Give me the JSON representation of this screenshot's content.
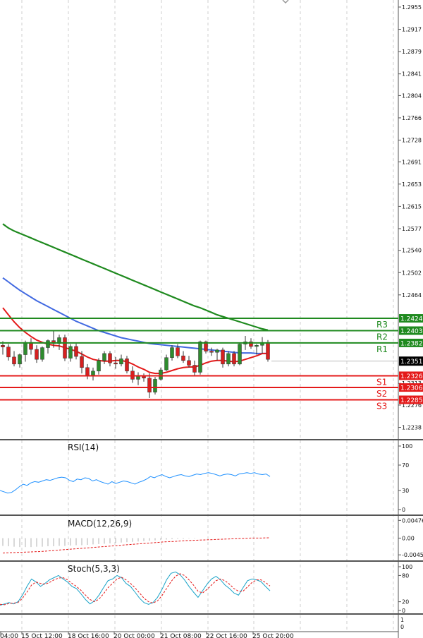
{
  "chart_data": {
    "type": "candlestick",
    "colors": {
      "bull": "#2e8b2e",
      "bear": "#d62020",
      "ma_fast": "#e41a1a",
      "ma_mid": "#4169e1",
      "ma_slow": "#1f8a1f",
      "resistance": "#1f8a1f",
      "support": "#e41a1a",
      "rsi_line": "#1e90ff",
      "macd_hist": "#b0b0b0",
      "macd_signal": "#e41a1a",
      "stoch_k": "#1aa3c8",
      "stoch_d": "#e41a1a",
      "label_bg_green": "#1f8a1f",
      "label_bg_red": "#e41a1a",
      "label_bg_current": "#000000"
    },
    "price_axis": {
      "ticks": [
        "1.2955",
        "1.2917",
        "1.2879",
        "1.2841",
        "1.2804",
        "1.2766",
        "1.2728",
        "1.2691",
        "1.2653",
        "1.2615",
        "1.2577",
        "1.2540",
        "1.2502",
        "1.2464",
        "1.2313",
        "1.2276",
        "1.2238"
      ],
      "tick_values": [
        1.2955,
        1.2917,
        1.2879,
        1.2841,
        1.2804,
        1.2766,
        1.2728,
        1.2691,
        1.2653,
        1.2615,
        1.2577,
        1.254,
        1.2502,
        1.2464,
        1.2313,
        1.2276,
        1.2238
      ],
      "range": [
        1.2223,
        1.2961
      ]
    },
    "levels": [
      {
        "name": "R3",
        "value": 1.2424,
        "label": "1.2424",
        "kind": "resistance"
      },
      {
        "name": "R2",
        "value": 1.2403,
        "label": "1.2403",
        "kind": "resistance"
      },
      {
        "name": "R1",
        "value": 1.2382,
        "label": "1.2382",
        "kind": "resistance"
      },
      {
        "name": "S1",
        "value": 1.2326,
        "label": "1.2326",
        "kind": "support"
      },
      {
        "name": "S2",
        "value": 1.2306,
        "label": "1.2306",
        "kind": "support"
      },
      {
        "name": "S3",
        "value": 1.2285,
        "label": "1.2285",
        "kind": "support"
      }
    ],
    "current_price": {
      "value": 1.2351,
      "label": "1.2351"
    },
    "time_axis": [
      "04:00",
      "15 Oct 12:00",
      "18 Oct 16:00",
      "20 Oct 00:00",
      "21 Oct 08:00",
      "22 Oct 16:00",
      "25 Oct 20:00"
    ],
    "candles": [
      [
        1.2378,
        1.2385,
        1.2362,
        1.2375
      ],
      [
        1.2375,
        1.238,
        1.2352,
        1.2358
      ],
      [
        1.2358,
        1.2368,
        1.2342,
        1.2346
      ],
      [
        1.2346,
        1.2364,
        1.234,
        1.2362
      ],
      [
        1.2362,
        1.2386,
        1.235,
        1.2383
      ],
      [
        1.2383,
        1.239,
        1.2362,
        1.2371
      ],
      [
        1.2371,
        1.2378,
        1.2348,
        1.2354
      ],
      [
        1.2354,
        1.2376,
        1.235,
        1.2374
      ],
      [
        1.2374,
        1.2388,
        1.2364,
        1.2386
      ],
      [
        1.2386,
        1.2402,
        1.2374,
        1.2381
      ],
      [
        1.2381,
        1.2396,
        1.237,
        1.2391
      ],
      [
        1.2391,
        1.2396,
        1.2351,
        1.2356
      ],
      [
        1.2356,
        1.238,
        1.235,
        1.2376
      ],
      [
        1.2376,
        1.2381,
        1.2354,
        1.2359
      ],
      [
        1.2359,
        1.2368,
        1.233,
        1.234
      ],
      [
        1.234,
        1.2346,
        1.232,
        1.2327
      ],
      [
        1.2327,
        1.234,
        1.2318,
        1.2334
      ],
      [
        1.2334,
        1.2356,
        1.2328,
        1.2352
      ],
      [
        1.2352,
        1.2368,
        1.2346,
        1.2364
      ],
      [
        1.2364,
        1.2368,
        1.2342,
        1.2348
      ],
      [
        1.2348,
        1.2358,
        1.2338,
        1.2346
      ],
      [
        1.2346,
        1.2362,
        1.2342,
        1.2355
      ],
      [
        1.2355,
        1.236,
        1.233,
        1.2334
      ],
      [
        1.2334,
        1.2342,
        1.2314,
        1.232
      ],
      [
        1.232,
        1.2332,
        1.231,
        1.2326
      ],
      [
        1.2326,
        1.233,
        1.2316,
        1.2322
      ],
      [
        1.2322,
        1.233,
        1.2288,
        1.2298
      ],
      [
        1.2298,
        1.2324,
        1.2294,
        1.232
      ],
      [
        1.232,
        1.234,
        1.2318,
        1.2336
      ],
      [
        1.2336,
        1.2362,
        1.2334,
        1.2357
      ],
      [
        1.2357,
        1.2378,
        1.2352,
        1.2374
      ],
      [
        1.2374,
        1.238,
        1.2356,
        1.236
      ],
      [
        1.236,
        1.2368,
        1.2348,
        1.2352
      ],
      [
        1.2352,
        1.236,
        1.234,
        1.2344
      ],
      [
        1.2344,
        1.2352,
        1.2326,
        1.2332
      ],
      [
        1.2332,
        1.2386,
        1.2328,
        1.2384
      ],
      [
        1.2384,
        1.2386,
        1.2364,
        1.2368
      ],
      [
        1.2368,
        1.2374,
        1.236,
        1.2366
      ],
      [
        1.2366,
        1.2372,
        1.2352,
        1.237
      ],
      [
        1.237,
        1.2374,
        1.234,
        1.2346
      ],
      [
        1.2346,
        1.2368,
        1.2342,
        1.2364
      ],
      [
        1.2364,
        1.2368,
        1.2342,
        1.2346
      ],
      [
        1.2346,
        1.2382,
        1.2344,
        1.238
      ],
      [
        1.238,
        1.2394,
        1.237,
        1.2384
      ],
      [
        1.2384,
        1.239,
        1.2372,
        1.2376
      ],
      [
        1.2376,
        1.238,
        1.2362,
        1.2378
      ],
      [
        1.2378,
        1.2392,
        1.2364,
        1.2383
      ],
      [
        1.2383,
        1.2387,
        1.235,
        1.2354
      ]
    ],
    "ma_fast": [
      1.2442,
      1.243,
      1.2418,
      1.2408,
      1.24,
      1.2393,
      1.2387,
      1.2383,
      1.238,
      1.2378,
      1.2377,
      1.2374,
      1.2371,
      1.2368,
      1.2363,
      1.2358,
      1.2354,
      1.2352,
      1.2351,
      1.2351,
      1.2352,
      1.2352,
      1.235,
      1.2346,
      1.2341,
      1.2337,
      1.2332,
      1.233,
      1.233,
      1.2332,
      1.2335,
      1.2338,
      1.234,
      1.2341,
      1.2341,
      1.2344,
      1.2348,
      1.2351,
      1.2352,
      1.2352,
      1.2351,
      1.235,
      1.2351,
      1.2354,
      1.2357,
      1.236,
      1.2364,
      1.2364
    ],
    "ma_mid": [
      1.2493,
      1.2486,
      1.2479,
      1.2472,
      1.2466,
      1.246,
      1.2454,
      1.2449,
      1.2444,
      1.2439,
      1.2434,
      1.2429,
      1.2424,
      1.2419,
      1.2415,
      1.2411,
      1.2407,
      1.2403,
      1.24,
      1.2397,
      1.2394,
      1.2391,
      1.2389,
      1.2387,
      1.2385,
      1.2383,
      1.2381,
      1.238,
      1.2379,
      1.2378,
      1.2377,
      1.2376,
      1.2375,
      1.2374,
      1.2373,
      1.2372,
      1.2371,
      1.237,
      1.2369,
      1.2368,
      1.2367,
      1.2366,
      1.2365,
      1.2365,
      1.2365,
      1.2364,
      1.2364,
      1.2364
    ],
    "ma_slow": [
      1.2585,
      1.2578,
      1.2573,
      1.2569,
      1.2565,
      1.2561,
      1.2557,
      1.2553,
      1.2549,
      1.2545,
      1.2541,
      1.2537,
      1.2533,
      1.2529,
      1.2525,
      1.2521,
      1.2517,
      1.2513,
      1.2509,
      1.2505,
      1.2501,
      1.2497,
      1.2493,
      1.2489,
      1.2485,
      1.2481,
      1.2477,
      1.2473,
      1.2469,
      1.2465,
      1.2461,
      1.2457,
      1.2453,
      1.2449,
      1.2445,
      1.2442,
      1.2438,
      1.2434,
      1.243,
      1.2427,
      1.2424,
      1.2421,
      1.2418,
      1.2415,
      1.2412,
      1.2409,
      1.2406,
      1.2404
    ],
    "rsi": {
      "title": "RSI(14)",
      "ticks": [
        "100",
        "70",
        "30",
        "0"
      ],
      "tick_values": [
        100,
        70,
        30,
        0
      ],
      "range": [
        0,
        100
      ],
      "values": [
        30,
        28,
        26,
        27,
        31,
        36,
        40,
        38,
        42,
        44,
        43,
        45,
        47,
        46,
        48,
        50,
        51,
        50,
        46,
        44,
        48,
        47,
        50,
        49,
        45,
        47,
        44,
        42,
        40,
        44,
        41,
        43,
        45,
        44,
        42,
        40,
        43,
        45,
        48,
        52,
        50,
        53,
        55,
        52,
        50,
        52,
        54,
        55,
        53,
        52,
        54,
        56,
        55,
        57,
        58,
        57,
        55,
        53,
        55,
        56,
        55,
        53,
        56,
        57,
        58,
        57,
        58,
        56,
        55,
        56,
        52
      ]
    },
    "macd": {
      "title": "MACD(12,26,9)",
      "ticks": [
        "0.00476",
        "0.00",
        "-0.0045"
      ],
      "tick_values": [
        0.00476,
        0,
        -0.0045
      ],
      "range": [
        -0.0056,
        0.0052
      ],
      "hist": [
        -0.0021,
        -0.0022,
        -0.0023,
        -0.0024,
        -0.0024,
        -0.0024,
        -0.0023,
        -0.0023,
        -0.0022,
        -0.0022,
        -0.0021,
        -0.0021,
        -0.002,
        -0.0019,
        -0.0019,
        -0.0018,
        -0.0017,
        -0.0016,
        -0.0015,
        -0.0014,
        -0.0013,
        -0.0012,
        -0.0011,
        -0.001,
        -0.0009,
        -0.0008,
        -0.0007,
        -0.0006,
        -0.0005,
        -0.0004,
        -0.0003,
        -0.0002,
        -0.0002,
        -0.0001,
        -0.0001
      ],
      "signal": [
        -0.004,
        -0.0039,
        -0.0038,
        -0.0037,
        -0.0036,
        -0.0034,
        -0.0032,
        -0.003,
        -0.0028,
        -0.0026,
        -0.0024,
        -0.0022,
        -0.002,
        -0.0018,
        -0.0016,
        -0.0014,
        -0.0012,
        -0.001,
        -0.0009,
        -0.0007,
        -0.0006,
        -0.0005,
        -0.0004,
        -0.0003,
        -0.0002,
        -0.0001,
        0.0,
        0.0,
        0.0001
      ]
    },
    "stoch": {
      "title": "Stoch(5,3,3)",
      "ticks": [
        "100",
        "80",
        "20",
        "0"
      ],
      "tick_values": [
        100,
        80,
        20,
        0
      ],
      "range": [
        0,
        100
      ],
      "k": [
        12,
        15,
        18,
        15,
        20,
        35,
        55,
        72,
        65,
        55,
        62,
        70,
        75,
        80,
        72,
        65,
        55,
        50,
        38,
        25,
        15,
        22,
        35,
        52,
        68,
        72,
        80,
        75,
        62,
        55,
        42,
        28,
        18,
        14,
        18,
        30,
        48,
        70,
        85,
        88,
        82,
        70,
        55,
        42,
        30,
        45,
        60,
        72,
        78,
        70,
        58,
        50,
        40,
        35,
        52,
        68,
        72,
        70,
        66,
        55,
        45
      ],
      "d": [
        14,
        13,
        16,
        17,
        18,
        28,
        42,
        58,
        65,
        62,
        60,
        64,
        70,
        74,
        75,
        70,
        62,
        55,
        46,
        35,
        25,
        20,
        26,
        38,
        52,
        62,
        72,
        76,
        70,
        62,
        52,
        40,
        28,
        20,
        17,
        22,
        34,
        50,
        66,
        78,
        84,
        80,
        70,
        58,
        44,
        40,
        48,
        58,
        68,
        72,
        68,
        60,
        50,
        44,
        44,
        54,
        64,
        70,
        70,
        64,
        56
      ]
    }
  }
}
